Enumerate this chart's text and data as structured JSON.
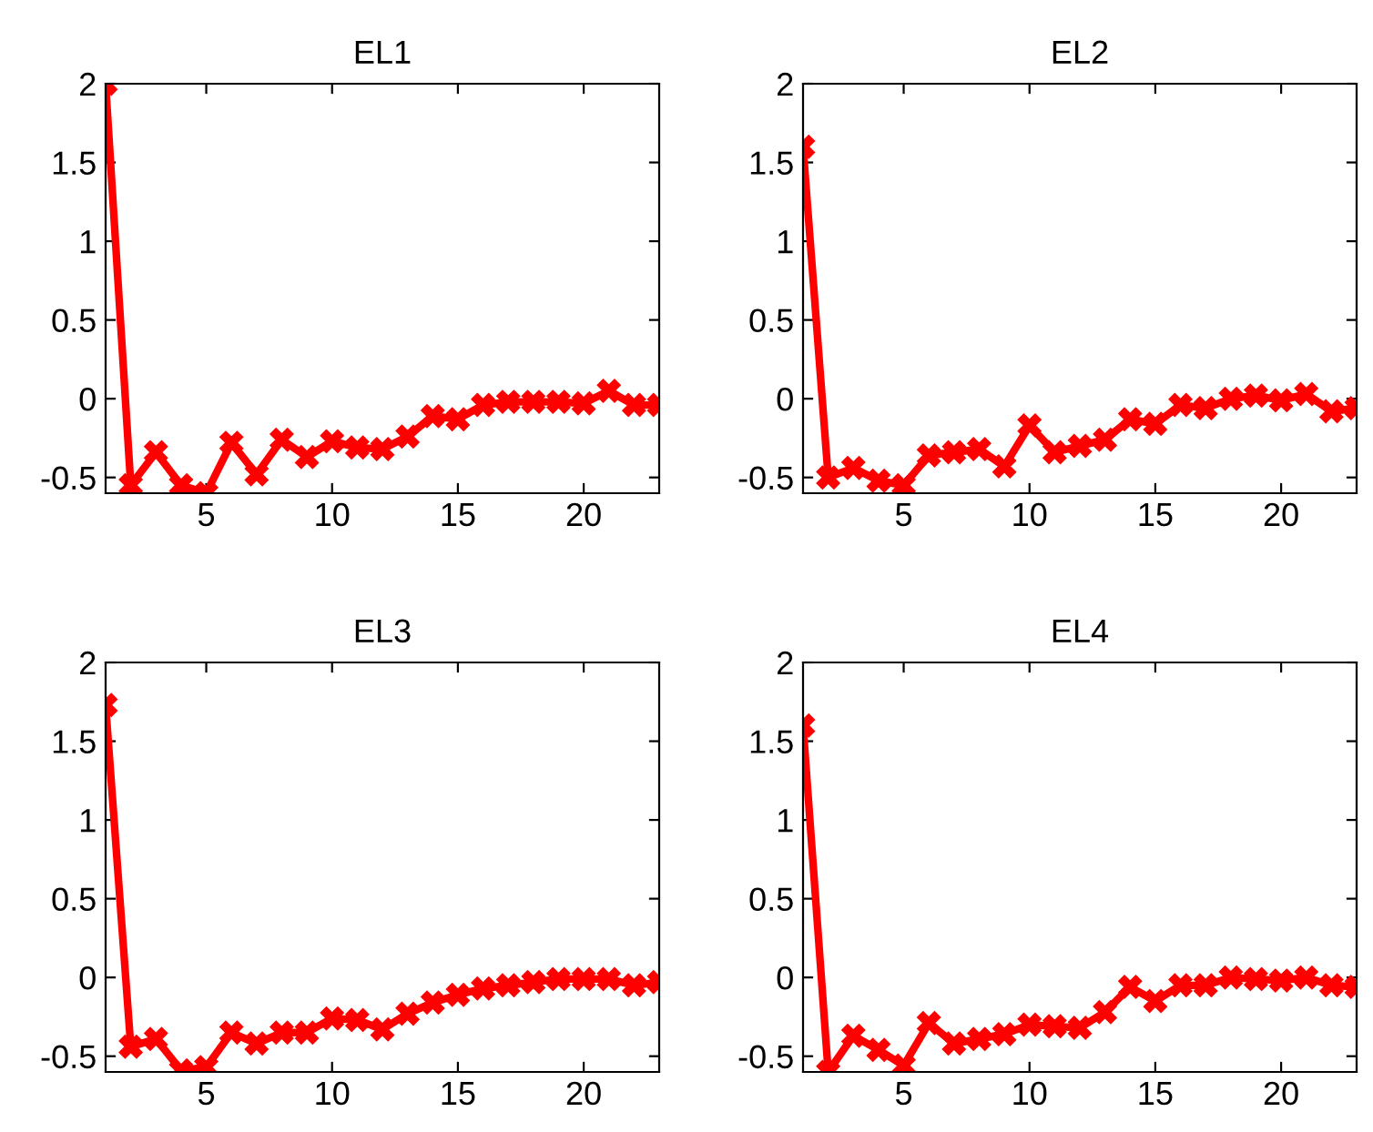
{
  "chart_data": [
    {
      "type": "line",
      "title": "EL1",
      "x": [
        1,
        2,
        3,
        4,
        5,
        6,
        7,
        8,
        9,
        10,
        11,
        12,
        13,
        14,
        15,
        16,
        17,
        18,
        19,
        20,
        21,
        22,
        23
      ],
      "marker": "cross",
      "line_style": "solid",
      "xlim": [
        1,
        23
      ],
      "ylim": [
        -0.6,
        2
      ],
      "xticks": [
        5,
        10,
        15,
        20
      ],
      "yticks": [
        -0.5,
        0,
        0.5,
        1,
        1.5,
        2
      ],
      "grid": false,
      "legend": false,
      "series": [
        {
          "color": "#ff0000",
          "values": [
            2,
            -0.55,
            -0.34,
            -0.55,
            -0.6,
            -0.28,
            -0.48,
            -0.26,
            -0.37,
            -0.27,
            -0.31,
            -0.32,
            -0.24,
            -0.11,
            -0.13,
            -0.04,
            -0.02,
            -0.02,
            -0.02,
            -0.03,
            0.05,
            -0.04,
            -0.04
          ]
        }
      ]
    },
    {
      "type": "line",
      "title": "EL2",
      "x": [
        1,
        2,
        3,
        4,
        5,
        6,
        7,
        8,
        9,
        10,
        11,
        12,
        13,
        14,
        15,
        16,
        17,
        18,
        19,
        20,
        21,
        22,
        23
      ],
      "marker": "cross",
      "line_style": "solid",
      "xlim": [
        1,
        23
      ],
      "ylim": [
        -0.6,
        2
      ],
      "xticks": [
        5,
        10,
        15,
        20
      ],
      "yticks": [
        -0.5,
        0,
        0.5,
        1,
        1.5,
        2
      ],
      "grid": false,
      "legend": false,
      "series": [
        {
          "color": "#ff0000",
          "values": [
            1.6,
            -0.5,
            -0.44,
            -0.52,
            -0.55,
            -0.36,
            -0.34,
            -0.32,
            -0.43,
            -0.17,
            -0.34,
            -0.3,
            -0.26,
            -0.13,
            -0.16,
            -0.04,
            -0.06,
            0.0,
            0.02,
            -0.01,
            0.03,
            -0.08,
            -0.06
          ]
        }
      ]
    },
    {
      "type": "line",
      "title": "EL3",
      "x": [
        1,
        2,
        3,
        4,
        5,
        6,
        7,
        8,
        9,
        10,
        11,
        12,
        13,
        14,
        15,
        16,
        17,
        18,
        19,
        20,
        21,
        22,
        23
      ],
      "marker": "cross",
      "line_style": "solid",
      "xlim": [
        1,
        23
      ],
      "ylim": [
        -0.6,
        2
      ],
      "xticks": [
        5,
        10,
        15,
        20
      ],
      "yticks": [
        -0.5,
        0,
        0.5,
        1,
        1.5,
        2
      ],
      "grid": false,
      "legend": false,
      "series": [
        {
          "color": "#ff0000",
          "values": [
            1.73,
            -0.44,
            -0.39,
            -0.59,
            -0.57,
            -0.35,
            -0.42,
            -0.35,
            -0.35,
            -0.26,
            -0.27,
            -0.33,
            -0.23,
            -0.16,
            -0.11,
            -0.07,
            -0.05,
            -0.03,
            -0.01,
            -0.01,
            -0.01,
            -0.05,
            -0.03
          ]
        }
      ]
    },
    {
      "type": "line",
      "title": "EL4",
      "x": [
        1,
        2,
        3,
        4,
        5,
        6,
        7,
        8,
        9,
        10,
        11,
        12,
        13,
        14,
        15,
        16,
        17,
        18,
        19,
        20,
        21,
        22,
        23
      ],
      "marker": "cross",
      "line_style": "solid",
      "xlim": [
        1,
        23
      ],
      "ylim": [
        -0.6,
        2
      ],
      "xticks": [
        5,
        10,
        15,
        20
      ],
      "yticks": [
        -0.5,
        0,
        0.5,
        1,
        1.5,
        2
      ],
      "grid": false,
      "legend": false,
      "series": [
        {
          "color": "#ff0000",
          "values": [
            1.6,
            -0.6,
            -0.37,
            -0.46,
            -0.56,
            -0.29,
            -0.42,
            -0.39,
            -0.36,
            -0.3,
            -0.31,
            -0.32,
            -0.22,
            -0.06,
            -0.15,
            -0.05,
            -0.05,
            0.0,
            -0.01,
            -0.02,
            0.0,
            -0.05,
            -0.06
          ]
        }
      ]
    }
  ]
}
